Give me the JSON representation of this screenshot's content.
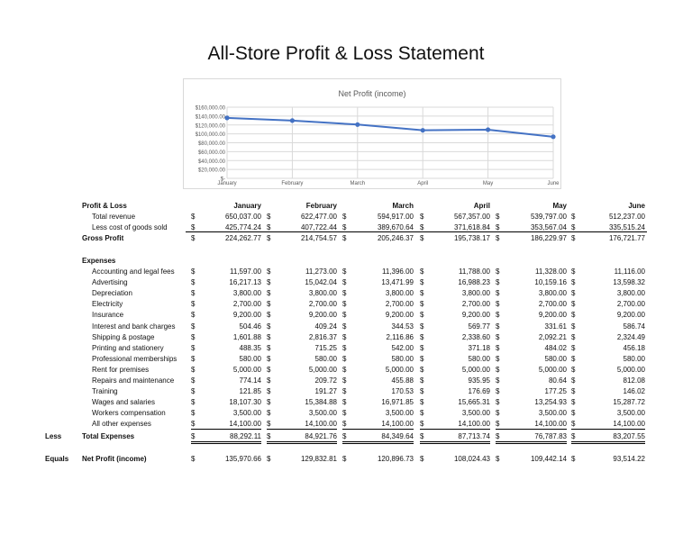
{
  "title": "All-Store Profit & Loss Statement",
  "chart_data": {
    "type": "line",
    "title": "Net Profit (income)",
    "categories": [
      "January",
      "February",
      "March",
      "April",
      "May",
      "June"
    ],
    "series": [
      {
        "name": "Net Profit (income)",
        "values": [
          135970.66,
          129832.81,
          120896.73,
          108024.43,
          109442.14,
          93514.22
        ],
        "color": "#4472c4"
      }
    ],
    "yticks": [
      "$160,000.00",
      "$140,000.00",
      "$120,000.00",
      "$100,000.00",
      "$80,000.00",
      "$60,000.00",
      "$40,000.00",
      "$20,000.00",
      "$-"
    ],
    "ylim": [
      0,
      160000
    ],
    "grid": true,
    "xlabel": "",
    "ylabel": ""
  },
  "table": {
    "header_label": "Profit & Loss",
    "months": [
      "January",
      "February",
      "March",
      "April",
      "May",
      "June"
    ],
    "currency": "$",
    "revenue_rows": [
      {
        "label": "Total revenue",
        "values": [
          "650,037.00",
          "622,477.00",
          "594,917.00",
          "567,357.00",
          "539,797.00",
          "512,237.00"
        ]
      },
      {
        "label": "Less cost of goods sold",
        "values": [
          "425,774.24",
          "407,722.44",
          "389,670.64",
          "371,618.84",
          "353,567.04",
          "335,515.24"
        ]
      }
    ],
    "gross_profit": {
      "label": "Gross Profit",
      "values": [
        "224,262.77",
        "214,754.57",
        "205,246.37",
        "195,738.17",
        "186,229.97",
        "176,721.77"
      ]
    },
    "expenses_label": "Expenses",
    "expense_rows": [
      {
        "label": "Accounting and legal fees",
        "values": [
          "11,597.00",
          "11,273.00",
          "11,396.00",
          "11,788.00",
          "11,328.00",
          "11,116.00"
        ]
      },
      {
        "label": "Advertising",
        "values": [
          "16,217.13",
          "15,042.04",
          "13,471.99",
          "16,988.23",
          "10,159.16",
          "13,598.32"
        ]
      },
      {
        "label": "Depreciation",
        "values": [
          "3,800.00",
          "3,800.00",
          "3,800.00",
          "3,800.00",
          "3,800.00",
          "3,800.00"
        ]
      },
      {
        "label": "Electricity",
        "values": [
          "2,700.00",
          "2,700.00",
          "2,700.00",
          "2,700.00",
          "2,700.00",
          "2,700.00"
        ]
      },
      {
        "label": "Insurance",
        "values": [
          "9,200.00",
          "9,200.00",
          "9,200.00",
          "9,200.00",
          "9,200.00",
          "9,200.00"
        ]
      },
      {
        "label": "Interest and bank charges",
        "values": [
          "504.46",
          "409.24",
          "344.53",
          "569.77",
          "331.61",
          "586.74"
        ]
      },
      {
        "label": "Shipping & postage",
        "values": [
          "1,601.88",
          "2,816.37",
          "2,116.86",
          "2,338.60",
          "2,092.21",
          "2,324.49"
        ]
      },
      {
        "label": "Printing and stationery",
        "values": [
          "488.35",
          "715.25",
          "542.00",
          "371.18",
          "484.02",
          "456.18"
        ]
      },
      {
        "label": "Professional memberships",
        "values": [
          "580.00",
          "580.00",
          "580.00",
          "580.00",
          "580.00",
          "580.00"
        ]
      },
      {
        "label": "Rent for premises",
        "values": [
          "5,000.00",
          "5,000.00",
          "5,000.00",
          "5,000.00",
          "5,000.00",
          "5,000.00"
        ]
      },
      {
        "label": "Repairs and maintenance",
        "values": [
          "774.14",
          "209.72",
          "455.88",
          "935.95",
          "80.64",
          "812.08"
        ]
      },
      {
        "label": "Training",
        "values": [
          "121.85",
          "191.27",
          "170.53",
          "176.69",
          "177.25",
          "146.02"
        ]
      },
      {
        "label": "Wages and salaries",
        "values": [
          "18,107.30",
          "15,384.88",
          "16,971.85",
          "15,665.31",
          "13,254.93",
          "15,287.72"
        ]
      },
      {
        "label": "Workers compensation",
        "values": [
          "3,500.00",
          "3,500.00",
          "3,500.00",
          "3,500.00",
          "3,500.00",
          "3,500.00"
        ]
      },
      {
        "label": "All other expenses",
        "values": [
          "14,100.00",
          "14,100.00",
          "14,100.00",
          "14,100.00",
          "14,100.00",
          "14,100.00"
        ]
      }
    ],
    "total_expenses": {
      "prefix": "Less",
      "label": "Total Expenses",
      "values": [
        "88,292.11",
        "84,921.76",
        "84,349.64",
        "87,713.74",
        "76,787.83",
        "83,207.55"
      ]
    },
    "net_profit": {
      "prefix": "Equals",
      "label": "Net Profit (income)",
      "values": [
        "135,970.66",
        "129,832.81",
        "120,896.73",
        "108,024.43",
        "109,442.14",
        "93,514.22"
      ]
    }
  }
}
